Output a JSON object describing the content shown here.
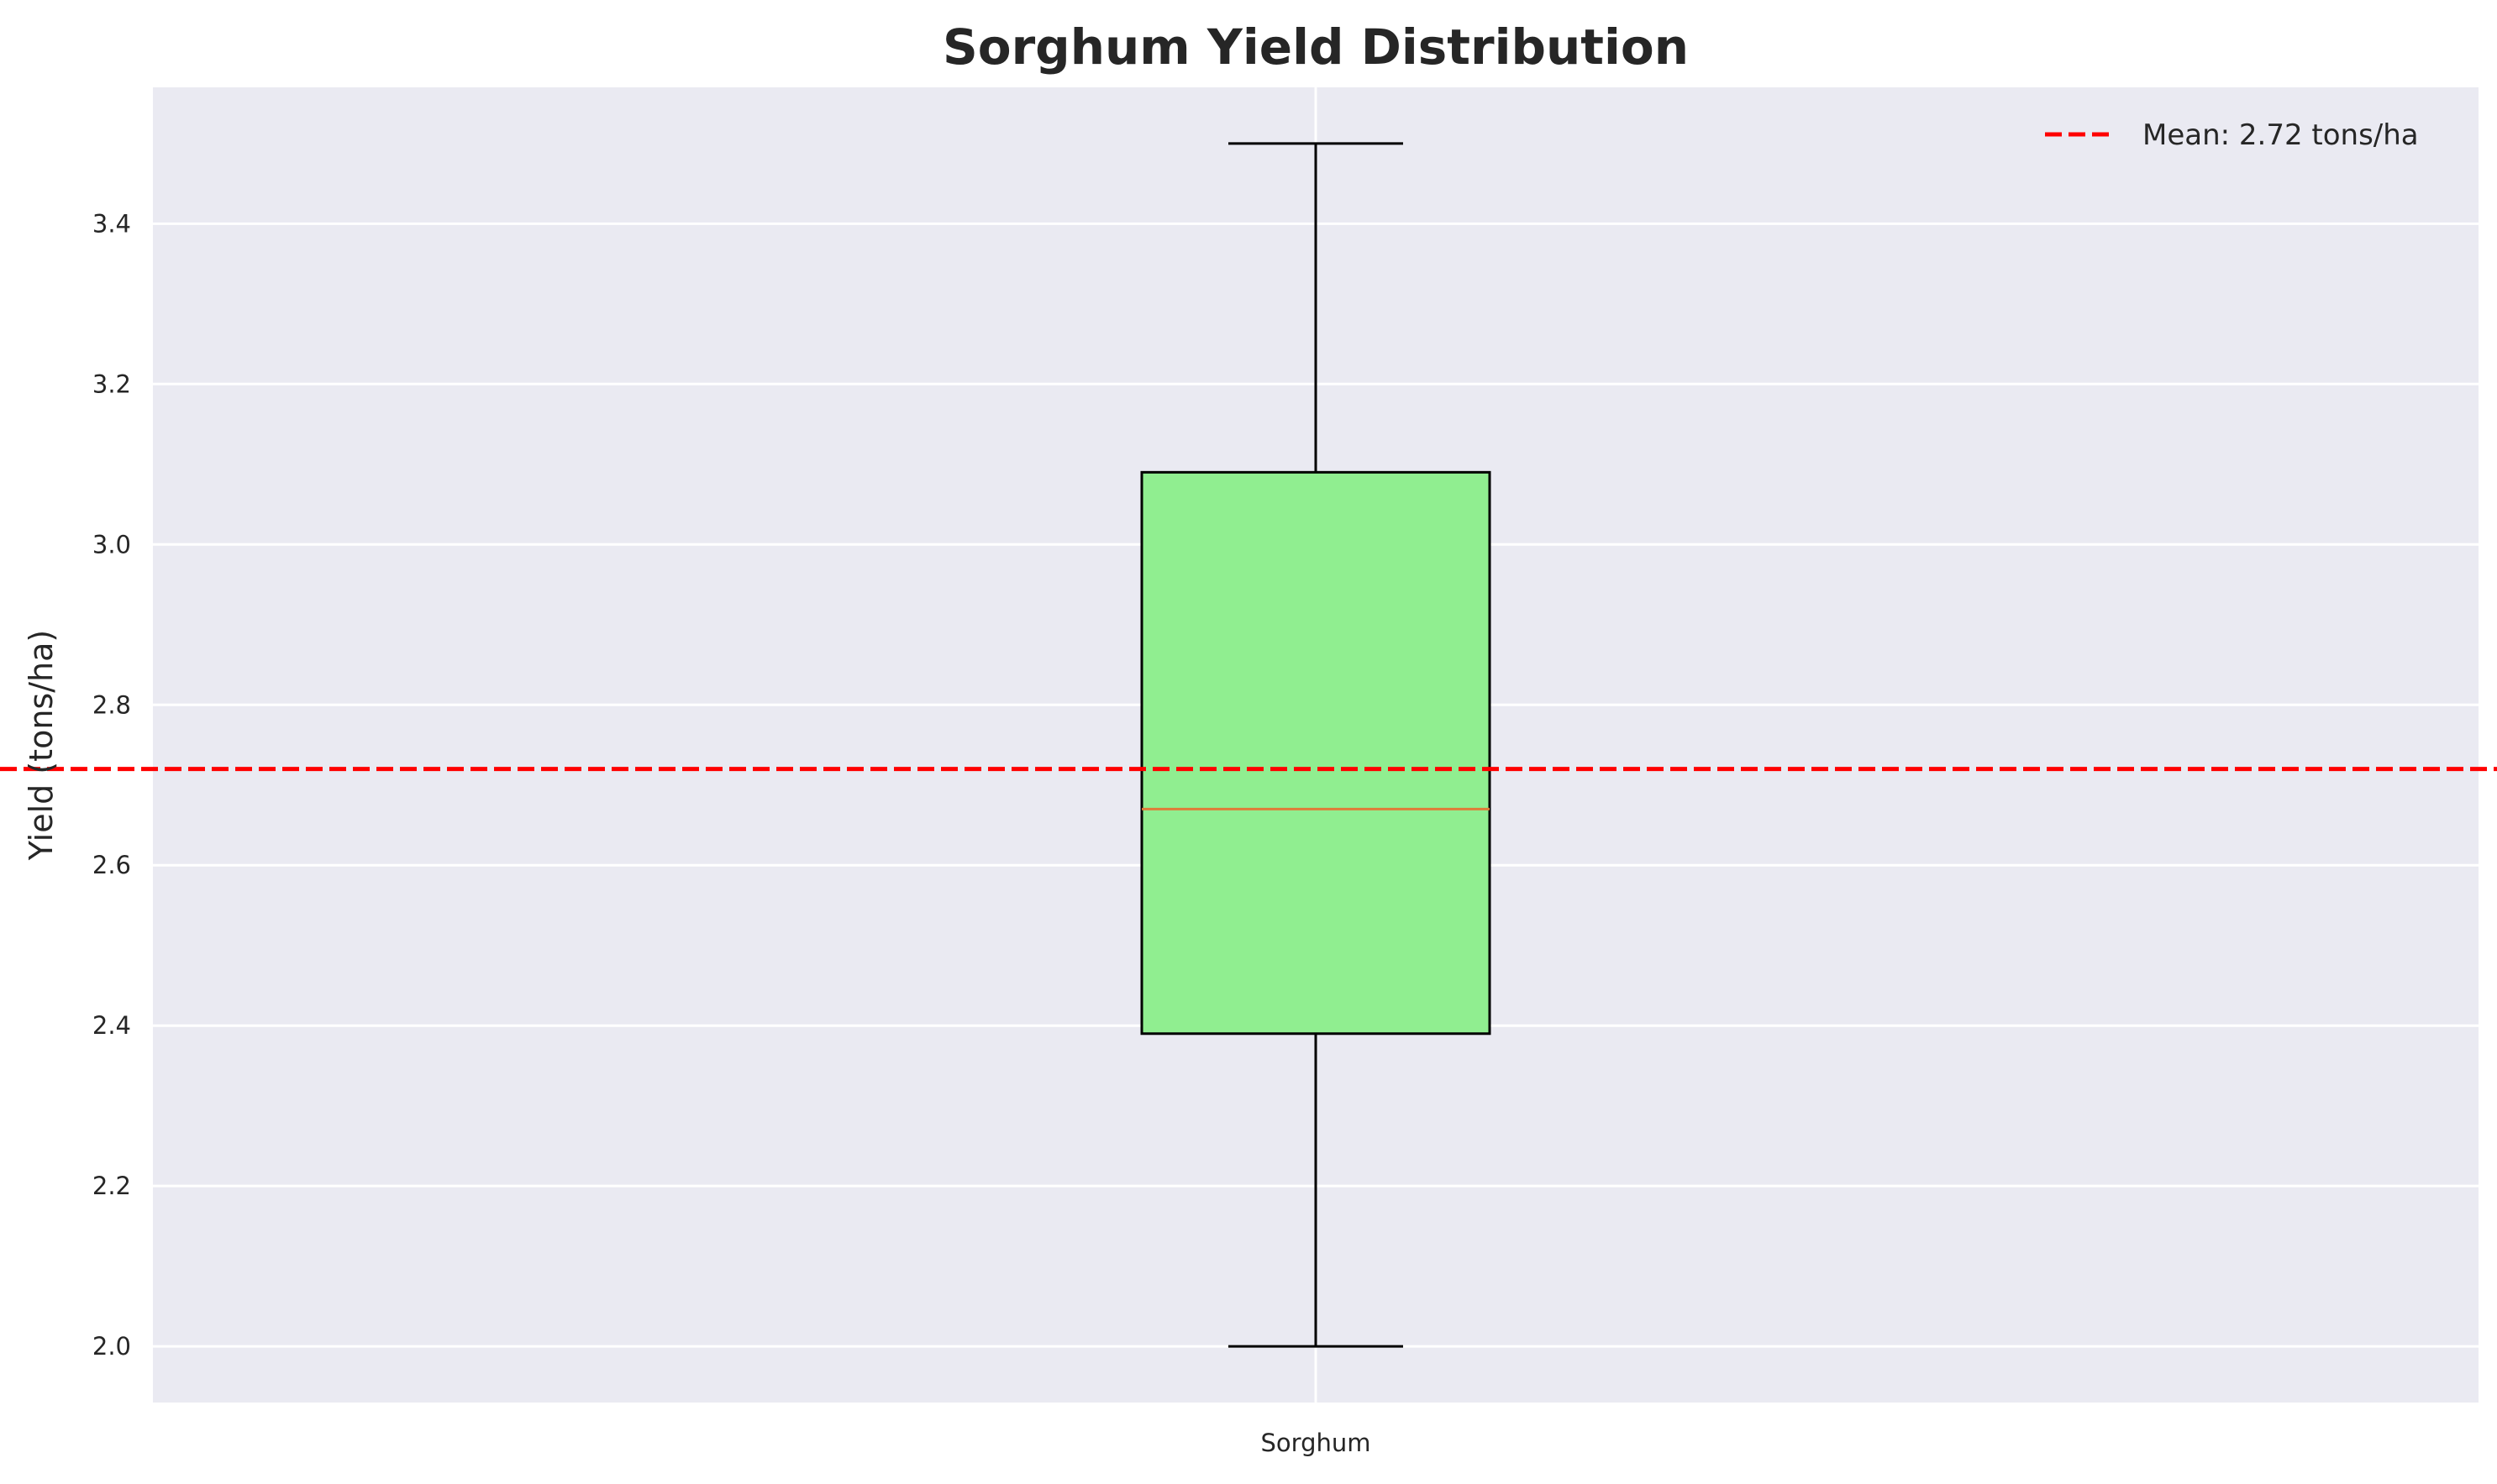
{
  "chart_data": {
    "type": "box",
    "title": "Sorghum Yield Distribution",
    "xlabel": "",
    "ylabel": "Yield (tons/ha)",
    "categories": [
      "Sorghum"
    ],
    "boxes": [
      {
        "category": "Sorghum",
        "whisker_low": 2.0,
        "q1": 2.39,
        "median": 2.67,
        "q3": 3.09,
        "whisker_high": 3.5
      }
    ],
    "mean": {
      "value": 2.72,
      "label": "Mean: 2.72 tons/ha",
      "color": "#ff0000"
    },
    "y_ticks": [
      2.0,
      2.2,
      2.4,
      2.6,
      2.8,
      3.0,
      3.2,
      3.4
    ],
    "ylim": [
      1.93,
      3.57
    ],
    "grid": true,
    "legend_position": "top-right",
    "colors": {
      "box_fill": "#90ee90",
      "median": "#e07b39",
      "plot_bg": "#eaeaf2",
      "grid": "#ffffff",
      "outline": "#000000"
    }
  }
}
